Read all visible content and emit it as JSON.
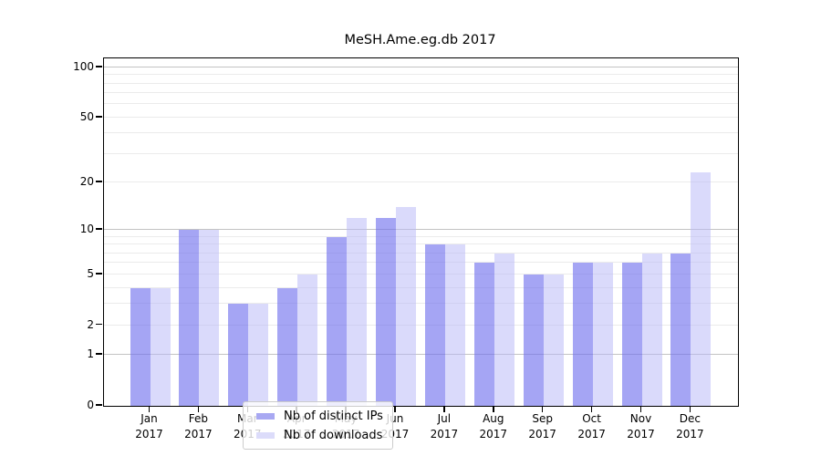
{
  "title": "MeSH.Ame.eg.db 2017",
  "chart_data": {
    "type": "bar",
    "title": "MeSH.Ame.eg.db 2017",
    "categories": [
      "Jan",
      "Feb",
      "Mar",
      "Apr",
      "May",
      "Jun",
      "Jul",
      "Aug",
      "Sep",
      "Oct",
      "Nov",
      "Dec"
    ],
    "category_year": "2017",
    "series": [
      {
        "name": "Nb of distinct IPs",
        "color": "rgba(110,110,238,0.62)",
        "legend_color": "#a8a8f2",
        "values": [
          4,
          10,
          3,
          4,
          9,
          12,
          8,
          6,
          5,
          6,
          6,
          7
        ]
      },
      {
        "name": "Nb of downloads",
        "color": "rgba(185,185,247,0.52)",
        "legend_color": "#dcdcfa",
        "values": [
          4,
          10,
          3,
          5,
          12,
          14,
          8,
          7,
          5,
          6,
          7,
          23
        ]
      }
    ],
    "y_scale": "log1p",
    "y_ticks": [
      0,
      1,
      2,
      5,
      10,
      20,
      50,
      100
    ],
    "y_max": 113,
    "ylim": [
      0,
      113
    ],
    "xlabel": "",
    "ylabel": "",
    "grid": {
      "major_values": [
        1,
        10,
        100
      ],
      "minor_values": [
        2,
        3,
        4,
        5,
        6,
        7,
        8,
        9,
        20,
        30,
        40,
        50,
        60,
        70,
        80,
        90
      ],
      "major_color": "#c3c3c3",
      "minor_color": "#ebebeb"
    },
    "legend_position": "inside bottom-center",
    "frame_color": "#000000",
    "background_color": "#ffffff"
  }
}
